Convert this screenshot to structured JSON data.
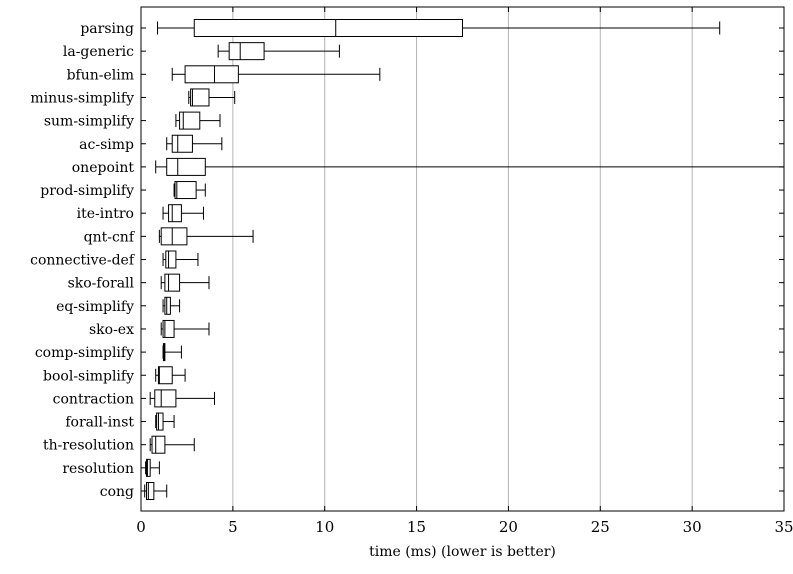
{
  "chart_data": {
    "type": "boxplot",
    "orientation": "horizontal",
    "xlabel": "time (ms) (lower is better)",
    "xlim": [
      0,
      35
    ],
    "xticks": [
      0,
      5,
      10,
      15,
      20,
      25,
      30,
      35
    ],
    "grid": "vertical",
    "series": [
      {
        "category": "parsing",
        "min": 0.9,
        "q1": 2.9,
        "median": 10.6,
        "q3": 17.5,
        "max": 31.5
      },
      {
        "category": "la-generic",
        "min": 4.2,
        "q1": 4.8,
        "median": 5.4,
        "q3": 6.7,
        "max": 10.8
      },
      {
        "category": "bfun-elim",
        "min": 1.7,
        "q1": 2.4,
        "median": 4.0,
        "q3": 5.3,
        "max": 13.0
      },
      {
        "category": "minus-simplify",
        "min": 2.6,
        "q1": 2.7,
        "median": 2.8,
        "q3": 3.7,
        "max": 5.1
      },
      {
        "category": "sum-simplify",
        "min": 1.9,
        "q1": 2.1,
        "median": 2.3,
        "q3": 3.2,
        "max": 4.3
      },
      {
        "category": "ac-simp",
        "min": 1.4,
        "q1": 1.7,
        "median": 2.0,
        "q3": 2.8,
        "max": 4.4
      },
      {
        "category": "onepoint",
        "min": 0.8,
        "q1": 1.4,
        "median": 2.0,
        "q3": 3.5,
        "max": 35.0
      },
      {
        "category": "prod-simplify",
        "min": 1.8,
        "q1": 1.85,
        "median": 1.95,
        "q3": 3.0,
        "max": 3.5
      },
      {
        "category": "ite-intro",
        "min": 1.2,
        "q1": 1.5,
        "median": 1.7,
        "q3": 2.2,
        "max": 3.4
      },
      {
        "category": "qnt-cnf",
        "min": 1.0,
        "q1": 1.1,
        "median": 1.7,
        "q3": 2.5,
        "max": 6.1
      },
      {
        "category": "connective-def",
        "min": 1.2,
        "q1": 1.35,
        "median": 1.5,
        "q3": 1.9,
        "max": 3.1
      },
      {
        "category": "sko-forall",
        "min": 1.1,
        "q1": 1.3,
        "median": 1.5,
        "q3": 2.1,
        "max": 3.7
      },
      {
        "category": "eq-simplify",
        "min": 1.2,
        "q1": 1.3,
        "median": 1.4,
        "q3": 1.6,
        "max": 2.1
      },
      {
        "category": "sko-ex",
        "min": 1.1,
        "q1": 1.2,
        "median": 1.3,
        "q3": 1.8,
        "max": 3.7
      },
      {
        "category": "comp-simplify",
        "min": 1.2,
        "q1": 1.22,
        "median": 1.26,
        "q3": 1.3,
        "max": 2.2
      },
      {
        "category": "bool-simplify",
        "min": 0.8,
        "q1": 0.95,
        "median": 1.0,
        "q3": 1.7,
        "max": 2.4
      },
      {
        "category": "contraction",
        "min": 0.5,
        "q1": 0.75,
        "median": 1.1,
        "q3": 1.9,
        "max": 4.0
      },
      {
        "category": "forall-inst",
        "min": 0.8,
        "q1": 0.85,
        "median": 0.95,
        "q3": 1.2,
        "max": 1.8
      },
      {
        "category": "th-resolution",
        "min": 0.5,
        "q1": 0.6,
        "median": 0.8,
        "q3": 1.3,
        "max": 2.9
      },
      {
        "category": "resolution",
        "min": 0.25,
        "q1": 0.3,
        "median": 0.35,
        "q3": 0.5,
        "max": 1.0
      },
      {
        "category": "cong",
        "min": 0.2,
        "q1": 0.3,
        "median": 0.4,
        "q3": 0.7,
        "max": 1.4
      }
    ]
  },
  "colors": {
    "box_stroke": "#000000",
    "grid": "#b3b3b3",
    "axis": "#000000",
    "background": "#ffffff"
  }
}
